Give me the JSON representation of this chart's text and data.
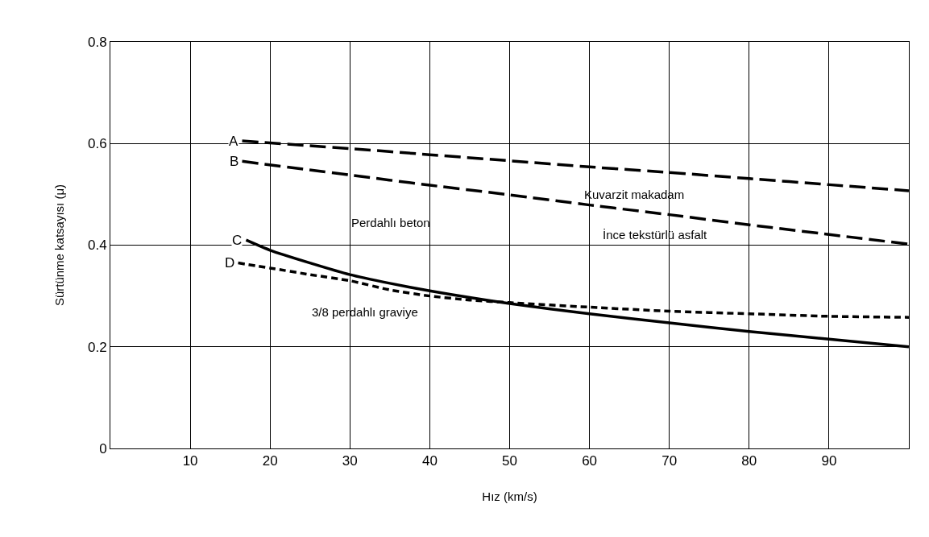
{
  "chart_data": {
    "type": "line",
    "xlabel": "Hız (km/s)",
    "ylabel": "Sürtünme katsayısı (μ)",
    "xlim": [
      0,
      100
    ],
    "xticks": [
      10,
      20,
      30,
      40,
      50,
      60,
      70,
      80,
      90
    ],
    "ylim": [
      0,
      0.8
    ],
    "yticks": [
      0,
      0.2,
      0.4,
      0.6,
      0.8
    ],
    "grid": true,
    "legend": false,
    "marker": "none",
    "series": [
      {
        "name": "A",
        "color": "#000000",
        "line_style": "dashed",
        "x": [
          16.5,
          30,
          40,
          50,
          60,
          70,
          80,
          90,
          100
        ],
        "values": [
          0.605,
          0.59,
          0.578,
          0.566,
          0.554,
          0.543,
          0.531,
          0.519,
          0.507
        ]
      },
      {
        "name": "B",
        "color": "#000000",
        "line_style": "dashed",
        "x": [
          16.5,
          30,
          40,
          50,
          60,
          70,
          80,
          90,
          100
        ],
        "values": [
          0.565,
          0.538,
          0.518,
          0.499,
          0.479,
          0.46,
          0.44,
          0.421,
          0.402
        ]
      },
      {
        "name": "C",
        "color": "#000000",
        "line_style": "solid",
        "x": [
          17,
          20,
          25,
          30,
          35,
          40,
          45,
          50,
          60,
          70,
          80,
          90,
          100
        ],
        "values": [
          0.41,
          0.39,
          0.365,
          0.342,
          0.325,
          0.31,
          0.297,
          0.285,
          0.265,
          0.247,
          0.23,
          0.215,
          0.2
        ]
      },
      {
        "name": "D",
        "color": "#000000",
        "line_style": "dotted",
        "x": [
          16,
          20,
          25,
          30,
          35,
          40,
          45,
          50,
          60,
          70,
          80,
          90,
          100
        ],
        "values": [
          0.365,
          0.355,
          0.342,
          0.33,
          0.312,
          0.3,
          0.292,
          0.287,
          0.278,
          0.27,
          0.265,
          0.26,
          0.258
        ]
      }
    ],
    "annotations": [
      "Kuvarzit makadam",
      "İnce tekstürlü asfalt",
      "Perdahlı beton",
      "3/8 perdahlı graviye"
    ]
  }
}
